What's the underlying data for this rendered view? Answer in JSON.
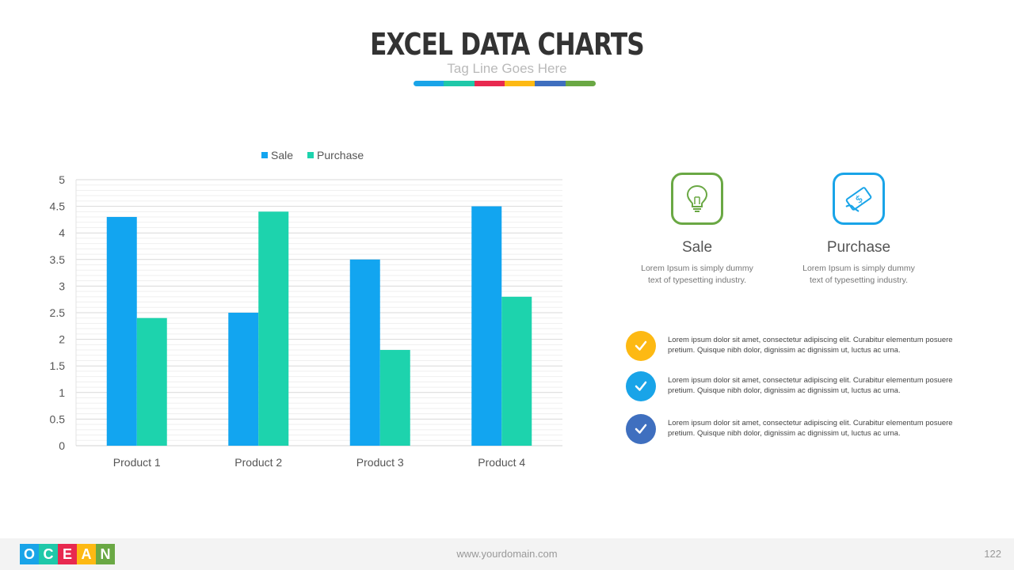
{
  "header": {
    "title": "EXCEL DATA CHARTS",
    "tagline": "Tag Line Goes Here",
    "bar_colors": [
      "#19a4e8",
      "#1fc8a9",
      "#e8294f",
      "#fdb913",
      "#3f6fbf",
      "#6aa844"
    ]
  },
  "chart_data": {
    "type": "bar",
    "categories": [
      "Product 1",
      "Product 2",
      "Product 3",
      "Product 4"
    ],
    "series": [
      {
        "name": "Sale",
        "values": [
          4.3,
          2.5,
          3.5,
          4.5
        ],
        "color": "#12a5f0"
      },
      {
        "name": "Purchase",
        "values": [
          2.4,
          4.4,
          1.8,
          2.8
        ],
        "color": "#1dd3ad"
      }
    ],
    "yticks": [
      "0",
      "0.5",
      "1",
      "1.5",
      "2",
      "2.5",
      "3",
      "3.5",
      "4",
      "4.5",
      "5"
    ],
    "ylim": [
      0,
      5
    ],
    "legend_position": "top",
    "grid": true
  },
  "features": [
    {
      "icon": "lightbulb-icon",
      "title": "Sale",
      "desc_line1": "Lorem Ipsum is simply dummy",
      "desc_line2": "text of typesetting industry.",
      "color": "#6aa844"
    },
    {
      "icon": "money-icon",
      "title": "Purchase",
      "desc_line1": "Lorem Ipsum is simply dummy",
      "desc_line2": "text of typesetting industry.",
      "color": "#19a4e8"
    }
  ],
  "list": [
    {
      "line1": "Lorem ipsum dolor sit amet, consectetur adipiscing elit. Curabitur elementum posuere",
      "line2": "pretium. Quisque nibh dolor, dignissim ac dignissim ut, luctus ac urna.",
      "color": "#fdb913"
    },
    {
      "line1": "Lorem ipsum dolor sit amet, consectetur adipiscing elit. Curabitur elementum posuere",
      "line2": "pretium. Quisque nibh dolor, dignissim ac dignissim ut, luctus ac urna.",
      "color": "#19a4e8"
    },
    {
      "line1": "Lorem ipsum dolor sit amet, consectetur adipiscing elit. Curabitur elementum posuere",
      "line2": "pretium. Quisque nibh dolor, dignissim ac dignissim ut, luctus ac urna.",
      "color": "#3f6fbf"
    }
  ],
  "footer": {
    "logo_letters": [
      "O",
      "C",
      "E",
      "A",
      "N"
    ],
    "logo_colors": [
      "#19a4e8",
      "#1fc8a9",
      "#e8294f",
      "#fdb913",
      "#6aa844"
    ],
    "url": "www.yourdomain.com",
    "page": "122"
  }
}
